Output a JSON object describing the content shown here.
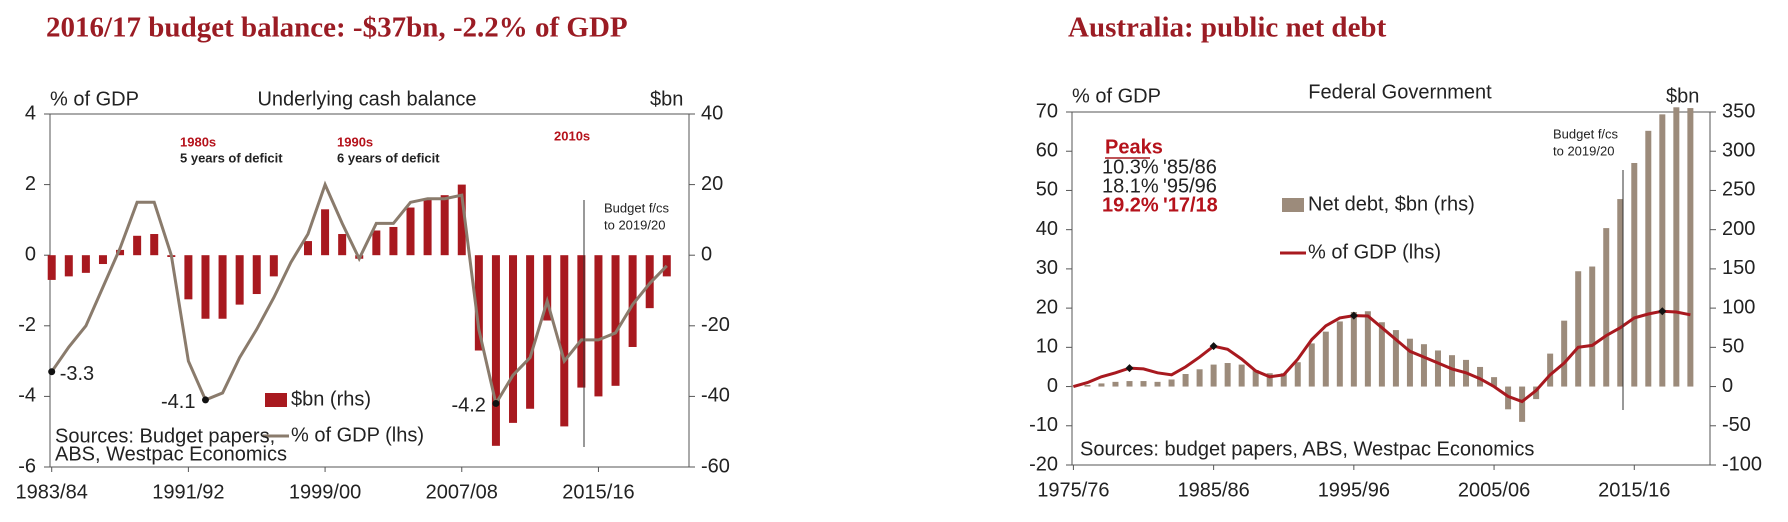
{
  "chart_data": [
    {
      "type": "bar_line",
      "title": "2016/17 budget balance: -$37bn, -2.2% of GDP",
      "subtitle": "Underlying cash balance",
      "y_label": "% of GDP",
      "y2_label": "$bn",
      "categories": [
        "1983/84",
        null,
        null,
        null,
        null,
        null,
        null,
        null,
        "1991/92",
        null,
        null,
        null,
        null,
        null,
        null,
        null,
        "1999/00",
        null,
        null,
        null,
        null,
        null,
        null,
        null,
        "2007/08",
        null,
        null,
        null,
        null,
        null,
        null,
        null,
        "2015/16",
        null,
        null,
        null,
        null
      ],
      "series": [
        {
          "name": "$bn (rhs)",
          "kind": "bar",
          "axis": "y2",
          "color": "#a8191f",
          "values": [
            -7,
            -6,
            -5,
            -2.5,
            1.5,
            5.5,
            6,
            -0.5,
            -12.5,
            -18,
            -18,
            -14,
            -11,
            -6,
            0,
            4,
            13,
            6,
            -1,
            7,
            8,
            13.5,
            16,
            17,
            20,
            -27,
            -54,
            -47.5,
            -43.5,
            -18.5,
            -48.5,
            -37.5,
            -40,
            -37,
            -26,
            -15,
            -6
          ]
        },
        {
          "name": "% of GDP (lhs)",
          "kind": "line",
          "axis": "y",
          "color": "#8a7b6c",
          "values": [
            -3.3,
            -2.6,
            -2.0,
            -0.9,
            0.2,
            1.5,
            1.5,
            0,
            -3.0,
            -4.1,
            -3.9,
            -2.9,
            -2.1,
            -1.2,
            -0.2,
            0.6,
            2.0,
            0.9,
            -0.1,
            0.9,
            0.9,
            1.5,
            1.6,
            1.6,
            1.7,
            -2.1,
            -4.2,
            -3.4,
            -2.9,
            -1.3,
            -3.0,
            -2.4,
            -2.4,
            -2.2,
            -1.4,
            -0.8,
            -0.3
          ],
          "value_labels": [
            "-3.3",
            null,
            null,
            null,
            null,
            null,
            null,
            null,
            null,
            "-4.1",
            null,
            null,
            null,
            null,
            null,
            null,
            null,
            null,
            null,
            null,
            null,
            null,
            null,
            null,
            null,
            null,
            "-4.2",
            null,
            null,
            null,
            null,
            null,
            null,
            null,
            null,
            null,
            null
          ]
        }
      ],
      "ylim": [
        -6,
        4
      ],
      "yticks": [
        -6,
        -4,
        -2,
        0,
        2,
        4
      ],
      "y2lim": [
        -60,
        40
      ],
      "y2ticks": [
        -60,
        -40,
        -20,
        0,
        20,
        40
      ],
      "decades": [
        {
          "label": "1980s",
          "note": "5 years of deficit"
        },
        {
          "label": "1990s",
          "note": "6 years of deficit"
        },
        {
          "label": "2010s"
        }
      ],
      "forecast_note": [
        "Budget f/cs",
        "to 2019/20"
      ],
      "source": [
        "Sources: Budget papers,",
        "ABS, Westpac Economics"
      ]
    },
    {
      "type": "bar_line",
      "title": "Australia: public net debt",
      "subtitle": "Federal Government",
      "y_label": "% of GDP",
      "y2_label": "$bn",
      "categories": [
        "1975/76",
        null,
        null,
        null,
        null,
        null,
        null,
        null,
        null,
        null,
        "1985/86",
        null,
        null,
        null,
        null,
        null,
        null,
        null,
        null,
        null,
        "1995/96",
        null,
        null,
        null,
        null,
        null,
        null,
        null,
        null,
        null,
        "2005/06",
        null,
        null,
        null,
        null,
        null,
        null,
        null,
        null,
        null,
        "2015/16",
        null,
        null,
        null,
        null
      ],
      "series": [
        {
          "name": "Net debt, $bn (rhs)",
          "kind": "bar",
          "axis": "y2",
          "color": "#9c8b7b",
          "values": [
            1,
            2,
            4,
            6,
            7,
            7,
            6,
            9,
            16,
            22,
            28,
            30,
            28,
            21,
            17,
            17,
            31,
            55,
            70,
            83,
            95,
            96,
            82,
            72,
            61,
            54,
            46,
            40,
            34,
            25,
            12,
            -29,
            -45,
            -16,
            42,
            84,
            147,
            153,
            202,
            239,
            285,
            326,
            347,
            356,
            355
          ]
        },
        {
          "name": "% of GDP (lhs)",
          "kind": "line",
          "axis": "y",
          "color": "#a8191f",
          "values": [
            0,
            1,
            2.5,
            3.5,
            4.7,
            4.5,
            3.5,
            3,
            5,
            7.5,
            10.3,
            9.5,
            7,
            4,
            2.5,
            3,
            7,
            12,
            15.5,
            17.5,
            18.1,
            18,
            15,
            12,
            9,
            7.5,
            6,
            4.5,
            3.5,
            2,
            0,
            -2.5,
            -3.8,
            -1,
            3,
            6,
            10,
            10.5,
            13,
            15,
            17.5,
            18.5,
            19.2,
            19,
            18.3
          ]
        }
      ],
      "ylim": [
        -20,
        70
      ],
      "yticks": [
        -20,
        -10,
        0,
        10,
        20,
        30,
        40,
        50,
        60,
        70
      ],
      "y2lim": [
        -100,
        350
      ],
      "y2ticks": [
        -100,
        -50,
        0,
        50,
        100,
        150,
        200,
        250,
        300,
        350
      ],
      "peaks": {
        "title": "Peaks",
        "rows": [
          [
            "10.3%",
            "'85/86"
          ],
          [
            "18.1%",
            "'95/96"
          ],
          [
            "19.2%",
            "'17/18"
          ]
        ]
      },
      "forecast_note": [
        "Budget f/cs",
        "to 2019/20"
      ],
      "source": [
        "Sources: budget papers, ABS, Westpac Economics"
      ]
    }
  ]
}
